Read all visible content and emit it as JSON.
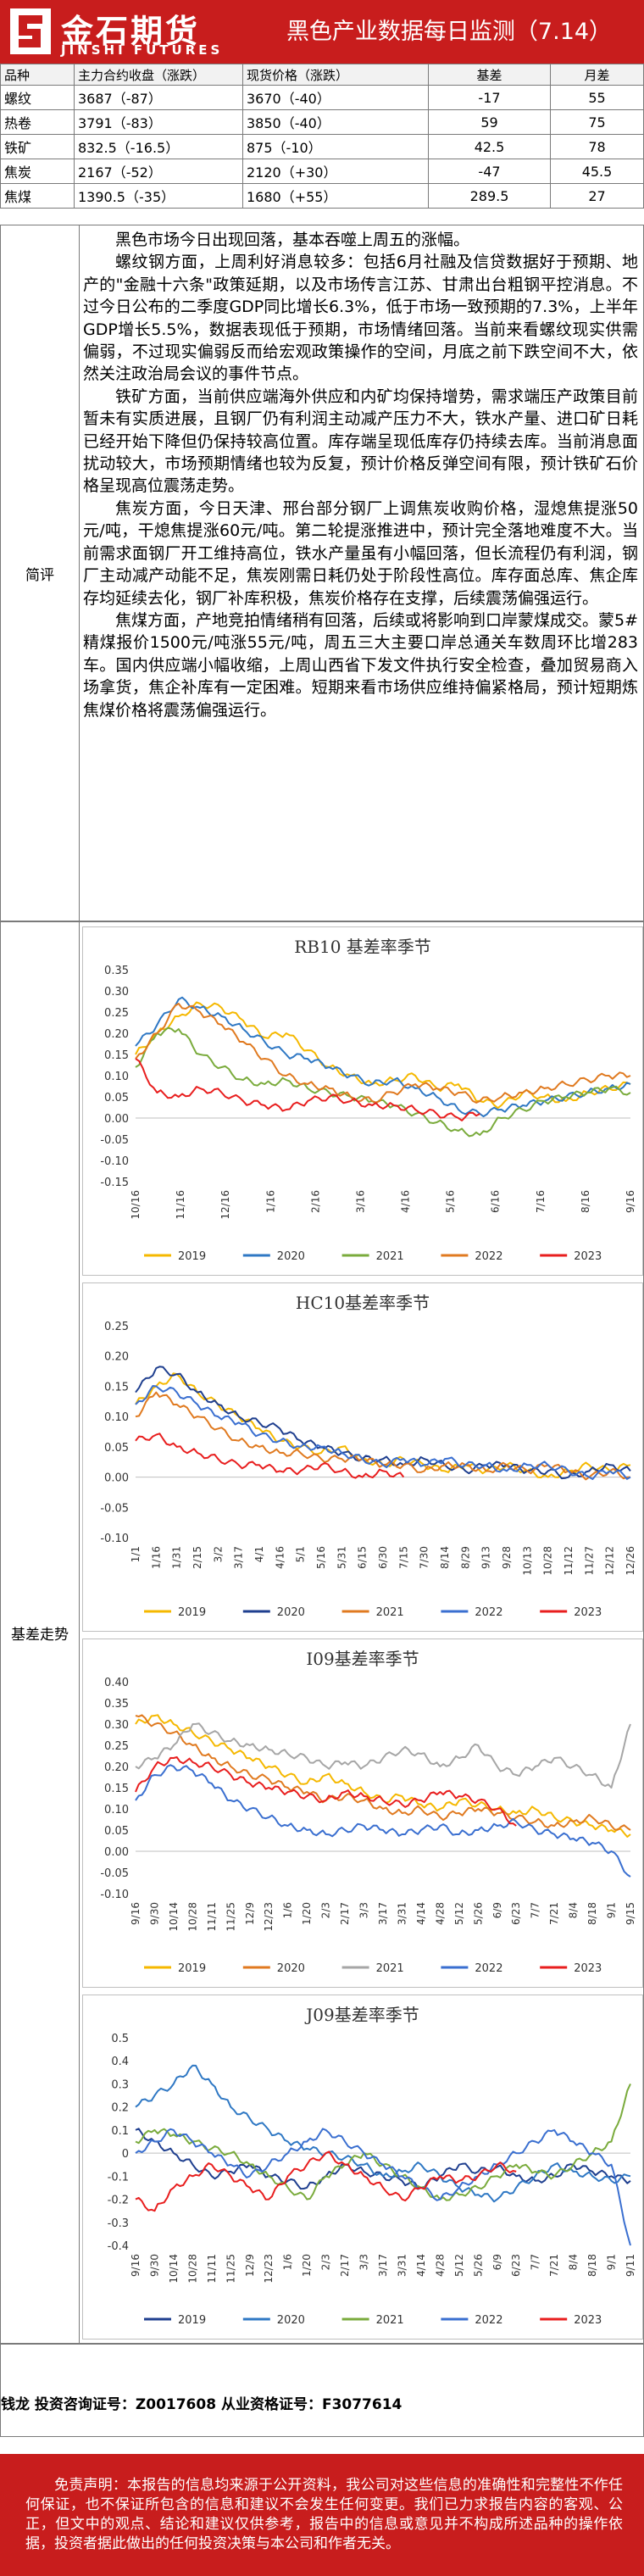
{
  "brand": {
    "cn": "金石期货",
    "en": "JINSHI FUTURES"
  },
  "report_title": "黑色产业数据每日监测（7.14）",
  "table": {
    "headers": [
      "品种",
      "主力合约收盘（涨跌）",
      "现货价格（涨跌）",
      "基差",
      "月差"
    ],
    "rows": [
      [
        "螺纹",
        "3687（-87）",
        "3670（-40）",
        "-17",
        "55"
      ],
      [
        "热卷",
        "3791（-83）",
        "3850（-40）",
        "59",
        "75"
      ],
      [
        "铁矿",
        "832.5（-16.5）",
        "875（-10）",
        "42.5",
        "78"
      ],
      [
        "焦炭",
        "2167（-52）",
        "2120（+30）",
        "-47",
        "45.5"
      ],
      [
        "焦煤",
        "1390.5（-35）",
        "1680（+55）",
        "289.5",
        "27"
      ]
    ]
  },
  "commentary": {
    "label": "简评",
    "paragraphs": [
      "黑色市场今日出现回落，基本吞噬上周五的涨幅。",
      "螺纹钢方面，上周利好消息较多：包括6月社融及信贷数据好于预期、地产的\"金融十六条\"政策延期，以及市场传言江苏、甘肃出台粗钢平控消息。不过今日公布的二季度GDP同比增长6.3%，低于市场一致预期的7.3%，上半年GDP增长5.5%，数据表现低于预期，市场情绪回落。当前来看螺纹现实供需偏弱，不过现实偏弱反而给宏观政策操作的空间，月底之前下跌空间不大，依然关注政治局会议的事件节点。",
      "铁矿方面，当前供应端海外供应和内矿均保持增势，需求端压产政策目前暂未有实质进展，且钢厂仍有利润主动减产压力不大，铁水产量、进口矿日耗已经开始下降但仍保持较高位置。库存端呈现低库存仍持续去库。当前消息面扰动较大，市场预期情绪也较为反复，预计价格反弹空间有限，预计铁矿石价格呈现高位震荡走势。",
      "焦炭方面，今日天津、邢台部分钢厂上调焦炭收购价格，湿熄焦提涨50元/吨，干熄焦提涨60元/吨。第二轮提涨推进中，预计完全落地难度不大。当前需求面钢厂开工维持高位，铁水产量虽有小幅回落，但长流程仍有利润，钢厂主动减产动能不足，焦炭刚需日耗仍处于阶段性高位。库存面总库、焦企库存均延续去化，钢厂补库积极，焦炭价格存在支撑，后续震荡偏强运行。",
      "焦煤方面，产地竞拍情绪稍有回落，后续或将影响到口岸蒙煤成交。蒙5#精煤报价1500元/吨涨55元/吨，周五三大主要口岸总通关车数周环比增283车。国内供应端小幅收缩，上周山西省下发文件执行安全检查，叠加贸易商入场拿货，焦企补库有一定困难。短期来看市场供应维持偏紧格局，预计短期炼焦煤价格将震荡偏强运行。"
    ]
  },
  "charts_label": "基差走势",
  "series_colors": {
    "2019": "#f5b800",
    "2020": "#2f78c4",
    "2021": "#7aab3c",
    "2022": "#a6a6a6",
    "2023": "#e81e1e",
    "2020_dark": "#1f3f8f",
    "2021_orange": "#e07a20",
    "2022_blue": "#3a6fd0"
  },
  "chart_data": [
    {
      "type": "line",
      "title": "RB10 基差率季节",
      "ylim": [
        -0.15,
        0.35
      ],
      "yticks": [
        "0.35",
        "0.30",
        "0.25",
        "0.20",
        "0.15",
        "0.10",
        "0.05",
        "0.00",
        "-0.05",
        "-0.10",
        "-0.15"
      ],
      "xticks": [
        "10/16",
        "11/16",
        "12/16",
        "1/16",
        "2/16",
        "3/16",
        "4/16",
        "5/16",
        "6/16",
        "7/16",
        "8/16",
        "9/16"
      ],
      "legend": [
        "2019",
        "2020",
        "2021",
        "2022",
        "2023"
      ],
      "series": [
        {
          "name": "2019",
          "color_key": "2019",
          "values": [
            0.15,
            0.2,
            0.24,
            0.27,
            0.26,
            0.23,
            0.19,
            0.2,
            0.16,
            0.12,
            0.1,
            0.08,
            0.09,
            0.1,
            0.07,
            0.08,
            0.04,
            0.03,
            0.06,
            0.05,
            0.04,
            0.06,
            0.07,
            0.08
          ]
        },
        {
          "name": "2020",
          "color_key": "2020",
          "values": [
            0.17,
            0.22,
            0.28,
            0.26,
            0.24,
            0.21,
            0.18,
            0.15,
            0.14,
            0.12,
            0.1,
            0.08,
            0.09,
            0.07,
            0.05,
            0.02,
            0.01,
            0.02,
            0.03,
            0.04,
            0.05,
            0.06,
            0.07,
            0.08
          ]
        },
        {
          "name": "2021",
          "color_key": "2021",
          "values": [
            0.12,
            0.2,
            0.21,
            0.15,
            0.12,
            0.09,
            0.08,
            0.09,
            0.07,
            0.06,
            0.05,
            0.04,
            0.03,
            0.01,
            -0.01,
            -0.03,
            -0.04,
            0.0,
            0.02,
            0.04,
            0.05,
            0.06,
            0.07,
            0.06
          ]
        },
        {
          "name": "2022",
          "color_key": "2021_orange",
          "values": [
            0.14,
            0.2,
            0.27,
            0.25,
            0.22,
            0.18,
            0.14,
            0.1,
            0.08,
            0.07,
            0.05,
            0.04,
            0.06,
            0.08,
            0.07,
            0.06,
            0.04,
            0.05,
            0.06,
            0.07,
            0.08,
            0.09,
            0.1,
            0.1
          ]
        },
        {
          "name": "2023",
          "color_key": "2023",
          "values": [
            0.14,
            0.06,
            0.05,
            0.07,
            0.06,
            0.04,
            0.03,
            0.02,
            0.04,
            0.05,
            0.04,
            0.03,
            0.03,
            0.02,
            0.01,
            0.0,
            0.01
          ]
        }
      ]
    },
    {
      "type": "line",
      "title": "HC10基差率季节",
      "ylim": [
        -0.1,
        0.25
      ],
      "yticks": [
        "0.25",
        "0.20",
        "0.15",
        "0.10",
        "0.05",
        "0.00",
        "-0.05",
        "-0.10"
      ],
      "xticks": [
        "1/1",
        "1/16",
        "1/31",
        "2/15",
        "3/2",
        "3/17",
        "4/1",
        "4/16",
        "5/1",
        "5/16",
        "5/31",
        "6/15",
        "6/30",
        "7/15",
        "7/30",
        "8/14",
        "8/29",
        "9/13",
        "9/28",
        "10/13",
        "10/28",
        "11/12",
        "11/27",
        "12/12",
        "12/26"
      ],
      "legend": [
        "2019",
        "2020",
        "2021",
        "2022",
        "2023"
      ],
      "series": [
        {
          "name": "2019",
          "color_key": "2019",
          "values": [
            0.12,
            0.15,
            0.17,
            0.14,
            0.12,
            0.1,
            0.08,
            0.06,
            0.05,
            0.04,
            0.05,
            0.03,
            0.02,
            0.03,
            0.02,
            0.01,
            0.02,
            0.01,
            0.02,
            0.01,
            0.0,
            0.01,
            0.02,
            0.01,
            0.02
          ]
        },
        {
          "name": "2020",
          "color_key": "2020_dark",
          "values": [
            0.14,
            0.18,
            0.17,
            0.14,
            0.12,
            0.1,
            0.09,
            0.08,
            0.06,
            0.05,
            0.04,
            0.03,
            0.03,
            0.02,
            0.03,
            0.02,
            0.01,
            0.02,
            0.02,
            0.01,
            0.01,
            0.0,
            0.01,
            0.02,
            0.01
          ]
        },
        {
          "name": "2021",
          "color_key": "2021_orange",
          "values": [
            0.1,
            0.14,
            0.12,
            0.1,
            0.08,
            0.06,
            0.05,
            0.04,
            0.04,
            0.03,
            0.03,
            0.03,
            0.02,
            0.02,
            0.01,
            0.02,
            0.02,
            0.01,
            0.02,
            0.01,
            0.02,
            0.01,
            0.0,
            0.01,
            0.0
          ]
        },
        {
          "name": "2022",
          "color_key": "2022_blue",
          "values": [
            0.12,
            0.15,
            0.14,
            0.12,
            0.1,
            0.09,
            0.07,
            0.06,
            0.05,
            0.05,
            0.04,
            0.03,
            0.02,
            0.03,
            0.02,
            0.03,
            0.02,
            0.02,
            0.01,
            0.02,
            0.02,
            0.01,
            0.0,
            0.01,
            0.0
          ]
        },
        {
          "name": "2023",
          "color_key": "2023",
          "values": [
            0.06,
            0.07,
            0.05,
            0.04,
            0.03,
            0.02,
            0.02,
            0.01,
            0.01,
            0.02,
            0.01,
            0.0,
            0.01,
            0.0
          ]
        }
      ]
    },
    {
      "type": "line",
      "title": "I09基差率季节",
      "ylim": [
        -0.1,
        0.4
      ],
      "yticks": [
        "0.40",
        "0.35",
        "0.30",
        "0.25",
        "0.20",
        "0.15",
        "0.10",
        "0.05",
        "0.00",
        "-0.05",
        "-0.10"
      ],
      "xticks": [
        "9/16",
        "9/30",
        "10/14",
        "10/28",
        "11/11",
        "11/25",
        "12/9",
        "12/23",
        "1/6",
        "1/20",
        "2/3",
        "2/17",
        "3/3",
        "3/17",
        "3/31",
        "4/14",
        "4/28",
        "5/12",
        "5/26",
        "6/9",
        "6/23",
        "7/7",
        "7/21",
        "8/4",
        "8/18",
        "9/1",
        "9/15"
      ],
      "legend": [
        "2019",
        "2020",
        "2021",
        "2022",
        "2023"
      ],
      "series": [
        {
          "name": "2019",
          "color_key": "2019",
          "values": [
            0.3,
            0.32,
            0.3,
            0.28,
            0.26,
            0.24,
            0.22,
            0.2,
            0.18,
            0.16,
            0.18,
            0.16,
            0.14,
            0.12,
            0.13,
            0.11,
            0.1,
            0.12,
            0.11,
            0.1,
            0.09,
            0.1,
            0.08,
            0.07,
            0.06,
            0.05,
            0.04
          ]
        },
        {
          "name": "2020",
          "color_key": "2021_orange",
          "values": [
            0.32,
            0.3,
            0.28,
            0.25,
            0.22,
            0.2,
            0.18,
            0.17,
            0.15,
            0.14,
            0.12,
            0.13,
            0.12,
            0.1,
            0.09,
            0.1,
            0.08,
            0.09,
            0.1,
            0.09,
            0.08,
            0.07,
            0.06,
            0.07,
            0.08,
            0.06,
            0.05
          ]
        },
        {
          "name": "2021",
          "color_key": "2022",
          "values": [
            0.2,
            0.22,
            0.25,
            0.3,
            0.28,
            0.26,
            0.25,
            0.24,
            0.23,
            0.22,
            0.2,
            0.21,
            0.2,
            0.22,
            0.24,
            0.23,
            0.2,
            0.22,
            0.25,
            0.2,
            0.18,
            0.2,
            0.22,
            0.2,
            0.18,
            0.15,
            0.3
          ]
        },
        {
          "name": "2022",
          "color_key": "2022_blue",
          "values": [
            0.12,
            0.18,
            0.2,
            0.19,
            0.16,
            0.12,
            0.1,
            0.08,
            0.06,
            0.05,
            0.04,
            0.05,
            0.06,
            0.05,
            0.04,
            0.05,
            0.06,
            0.04,
            0.05,
            0.06,
            0.07,
            0.05,
            0.04,
            0.03,
            0.02,
            0.0,
            -0.06
          ]
        },
        {
          "name": "2023",
          "color_key": "2023",
          "values": [
            0.14,
            0.2,
            0.22,
            0.21,
            0.2,
            0.18,
            0.16,
            0.15,
            0.14,
            0.13,
            0.12,
            0.14,
            0.13,
            0.12,
            0.11,
            0.12,
            0.14,
            0.13,
            0.12,
            0.1,
            0.06
          ]
        }
      ]
    },
    {
      "type": "line",
      "title": "J09基差率季节",
      "ylim": [
        -0.4,
        0.5
      ],
      "yticks": [
        "0.5",
        "0.4",
        "0.3",
        "0.2",
        "0.1",
        "0",
        "-0.1",
        "-0.2",
        "-0.3",
        "-0.4"
      ],
      "xticks": [
        "9/16",
        "9/30",
        "10/14",
        "10/28",
        "11/11",
        "11/25",
        "12/9",
        "12/23",
        "1/6",
        "1/20",
        "2/3",
        "2/17",
        "3/3",
        "3/17",
        "3/31",
        "4/14",
        "4/28",
        "5/12",
        "5/26",
        "6/9",
        "6/23",
        "7/7",
        "7/21",
        "8/4",
        "8/18",
        "9/1",
        "9/11"
      ],
      "legend": [
        "2019",
        "2020",
        "2021",
        "2022",
        "2023"
      ],
      "series": [
        {
          "name": "2019",
          "color_key": "2020_dark",
          "values": [
            0.1,
            0.05,
            0.0,
            -0.05,
            -0.1,
            -0.08,
            -0.05,
            -0.1,
            -0.12,
            -0.15,
            -0.1,
            -0.05,
            -0.08,
            -0.1,
            -0.12,
            -0.15,
            -0.1,
            -0.05,
            -0.08,
            -0.06,
            -0.1,
            -0.12,
            -0.1,
            -0.05,
            -0.08,
            -0.1,
            -0.12
          ]
        },
        {
          "name": "2020",
          "color_key": "2020",
          "values": [
            0.2,
            0.25,
            0.3,
            0.38,
            0.3,
            0.2,
            0.15,
            0.1,
            0.05,
            0.02,
            0.0,
            -0.02,
            -0.05,
            -0.1,
            -0.08,
            -0.05,
            -0.1,
            -0.15,
            -0.18,
            -0.2,
            -0.15,
            -0.1,
            -0.05,
            -0.08,
            -0.1,
            -0.12,
            -0.1
          ]
        },
        {
          "name": "2021",
          "color_key": "2021",
          "values": [
            0.05,
            0.1,
            0.08,
            0.05,
            0.02,
            0.0,
            -0.05,
            -0.1,
            -0.15,
            -0.2,
            -0.1,
            -0.05,
            0.0,
            -0.05,
            -0.1,
            -0.15,
            -0.2,
            -0.18,
            -0.15,
            -0.1,
            -0.05,
            -0.08,
            -0.1,
            -0.05,
            0.0,
            0.05,
            0.3
          ]
        },
        {
          "name": "2022",
          "color_key": "2022_blue",
          "values": [
            0.0,
            0.05,
            0.1,
            0.05,
            0.0,
            -0.05,
            -0.1,
            -0.05,
            0.0,
            0.05,
            0.1,
            0.05,
            0.0,
            -0.05,
            -0.1,
            -0.15,
            -0.2,
            -0.15,
            -0.1,
            -0.05,
            0.0,
            0.05,
            0.1,
            0.05,
            0.0,
            -0.05,
            -0.4
          ]
        },
        {
          "name": "2023",
          "color_key": "2023",
          "values": [
            -0.2,
            -0.25,
            -0.15,
            -0.1,
            -0.05,
            -0.1,
            -0.15,
            -0.2,
            -0.1,
            -0.05,
            0.0,
            -0.05,
            -0.1,
            -0.15,
            -0.2,
            -0.15,
            -0.1,
            -0.12,
            -0.1,
            -0.05,
            -0.08
          ]
        }
      ]
    }
  ],
  "contact": "钱龙 投资咨询证号：Z0017608 从业资格证号：F3077614",
  "disclaimer": "免责声明：本报告的信息均来源于公开资料，我公司对这些信息的准确性和完整性不作任何保证，也不保证所包含的信息和建议不会发生任何变更。我们已力求报告内容的客观、公正，但文中的观点、结论和建议仅供参考，报告中的信息或意见并不构成所述品种的操作依据，投资者据此做出的任何投资决策与本公司和作者无关。"
}
